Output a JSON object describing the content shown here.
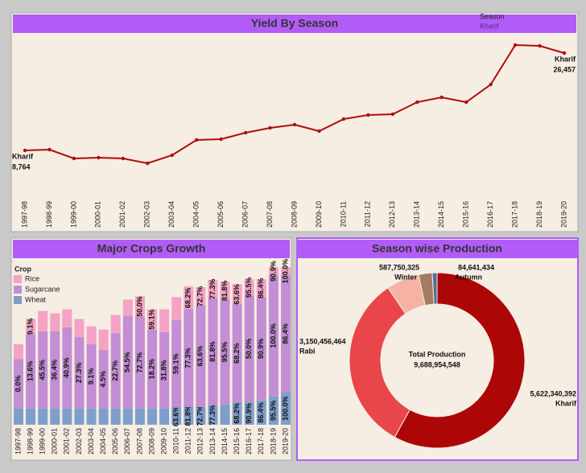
{
  "dashboard": {
    "line_chart": {
      "type": "line",
      "title": "Yield By Season",
      "legend_title": "Season",
      "categories": [
        "1997-98",
        "1998-99",
        "1999-00",
        "2000-01",
        "2001-02",
        "2002-03",
        "2003-04",
        "2004-05",
        "2005-06",
        "2006-07",
        "2007-08",
        "2008-09",
        "2009-10",
        "2010-11",
        "2011-12",
        "2012-13",
        "2013-14",
        "2014-15",
        "2015-16",
        "2016-17",
        "2017-18",
        "2018-19",
        "2019-20"
      ],
      "series": [
        {
          "name": "Kharif",
          "color": "#b00c0c",
          "values": [
            8764,
            8910,
            7302,
            7448,
            7302,
            6425,
            7887,
            10665,
            10811,
            11980,
            12858,
            13443,
            12273,
            14466,
            15197,
            15343,
            17536,
            18413,
            17536,
            20753,
            27917,
            27771,
            26457
          ],
          "value_labels": [
            "8,764",
            null,
            null,
            null,
            null,
            null,
            null,
            null,
            null,
            null,
            null,
            null,
            null,
            null,
            null,
            null,
            null,
            null,
            null,
            null,
            null,
            null,
            "26,457"
          ]
        }
      ]
    },
    "bar_chart": {
      "type": "stacked_bar",
      "title": "Major Crops Growth",
      "legend_title": "Crop",
      "categories": [
        "1997-98",
        "1998-99",
        "1999-00",
        "2000-01",
        "2001-02",
        "2002-03",
        "2003-04",
        "2004-05",
        "2005-06",
        "2006-07",
        "2007-08",
        "2008-09",
        "2009-10",
        "2010-11",
        "2011-12",
        "2012-13",
        "2013-14",
        "2014-15",
        "2015-16",
        "2016-17",
        "2017-18",
        "2018-19",
        "2019-20"
      ],
      "series": [
        {
          "name": "Wheat",
          "color": "#7f9fcb",
          "values": [
            20,
            20,
            20,
            20,
            20,
            20,
            20,
            20,
            20,
            20,
            20,
            20,
            20,
            21,
            22,
            22,
            24,
            25,
            28,
            28,
            30,
            35,
            40
          ],
          "percent_labels": [
            null,
            null,
            null,
            null,
            null,
            null,
            null,
            null,
            null,
            null,
            null,
            null,
            null,
            "63.6%",
            "81.8%",
            "72.7%",
            "77.3%",
            null,
            "68.2%",
            "90.9%",
            "86.4%",
            "95.5%",
            "100.0%"
          ]
        },
        {
          "name": "Sugarcane",
          "color": "#c38ed4",
          "values": [
            61,
            92,
            95,
            95,
            100,
            88,
            79,
            72,
            93,
            114,
            113,
            97,
            94,
            108,
            120,
            125,
            132,
            129,
            120,
            131,
            127,
            149,
            144
          ],
          "percent_labels": [
            "0.0%",
            "13.6%",
            "45.5%",
            "36.4%",
            "40.9%",
            "27.3%",
            "9.1%",
            "4.5%",
            "22.7%",
            "54.5%",
            "72.7%",
            "18.2%",
            "31.8%",
            "59.1%",
            "77.3%",
            "63.6%",
            "81.8%",
            "95.5%",
            "68.2%",
            "50.0%",
            "90.9%",
            "100.0%",
            "86.4%"
          ]
        },
        {
          "name": "Rice",
          "color": "#f4a3c4",
          "values": [
            18,
            18,
            25,
            22,
            22,
            22,
            22,
            25,
            22,
            20,
            25,
            25,
            28,
            28,
            28,
            22,
            22,
            22,
            25,
            20,
            22,
            10,
            10
          ],
          "percent_labels": [
            null,
            "9.1%",
            null,
            null,
            null,
            null,
            null,
            null,
            null,
            null,
            "50.0%",
            "59.1%",
            null,
            null,
            "68.2%",
            "72.7%",
            "77.3%",
            "81.8%",
            "63.6%",
            "95.5%",
            "86.4%",
            "90.9%",
            "100.0%"
          ]
        }
      ]
    },
    "pie_chart": {
      "type": "donut",
      "title": "Season wise Production",
      "categories": [
        "Kharif",
        "Rabi",
        "Winter",
        null,
        "Autumn"
      ],
      "values": [
        5622340392,
        3150456464,
        587750325,
        243765933,
        84641434
      ],
      "value_labels": [
        "5,622,340,392",
        "3,150,456,464",
        "587,750,325",
        null,
        "84,641,434"
      ],
      "colors": [
        "#ad0606",
        "#e8464a",
        "#f6b2a4",
        "#a47a62",
        "#4f6f9a"
      ],
      "center_title": "Total Production",
      "total": {
        "value": 9688954548,
        "label": "9,688,954,548"
      }
    }
  }
}
